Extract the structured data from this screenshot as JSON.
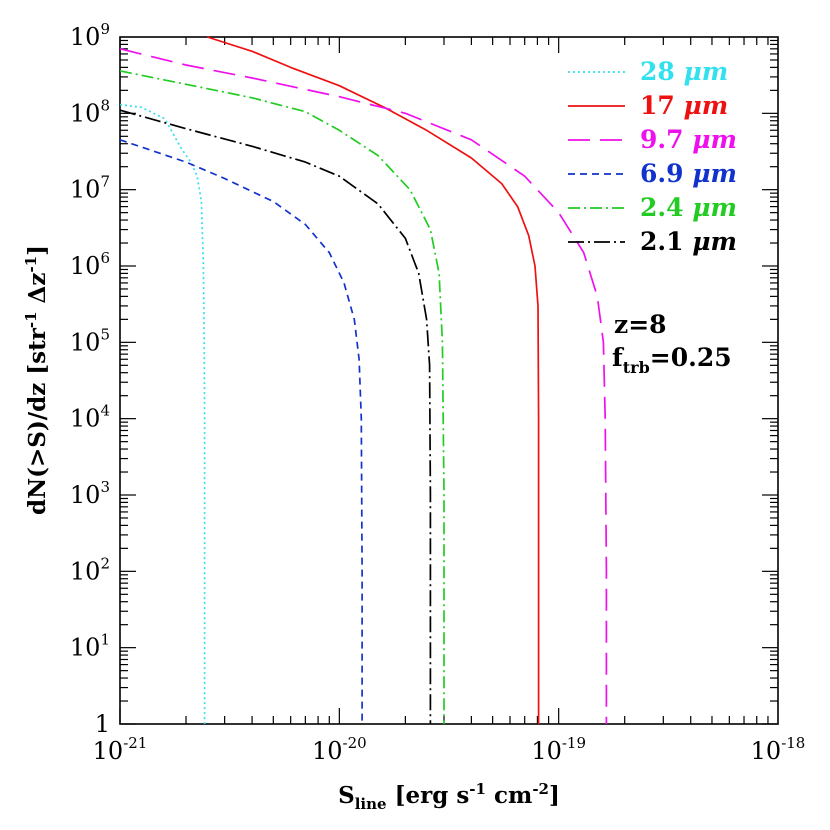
{
  "chart_data": {
    "type": "line",
    "xscale": "log",
    "yscale": "log",
    "xlim": [
      1e-21,
      1e-18
    ],
    "ylim": [
      1,
      1000000000.0
    ],
    "xlabel": {
      "main": "S",
      "sub": "line",
      "rest": " [erg s",
      "e1": "-1",
      "mid": " cm",
      "e2": "-2",
      "end": "]"
    },
    "ylabel": {
      "pre": "dN(>S)/dz [str",
      "e1": "-1",
      "mid": " Δz",
      "e2": "-1",
      "end": "]"
    },
    "xticks": [
      {
        "base": "10",
        "exp": "-21",
        "value": 1e-21
      },
      {
        "base": "10",
        "exp": "-20",
        "value": 1e-20
      },
      {
        "base": "10",
        "exp": "-19",
        "value": 1e-19
      },
      {
        "base": "10",
        "exp": "-18",
        "value": 1e-18
      }
    ],
    "yticks": [
      {
        "base": "1",
        "exp": "",
        "value": 1
      },
      {
        "base": "10",
        "exp": "1",
        "value": 10
      },
      {
        "base": "10",
        "exp": "2",
        "value": 100
      },
      {
        "base": "10",
        "exp": "3",
        "value": 1000
      },
      {
        "base": "10",
        "exp": "4",
        "value": 10000
      },
      {
        "base": "10",
        "exp": "5",
        "value": 100000
      },
      {
        "base": "10",
        "exp": "6",
        "value": 1000000
      },
      {
        "base": "10",
        "exp": "7",
        "value": 10000000
      },
      {
        "base": "10",
        "exp": "8",
        "value": 100000000
      },
      {
        "base": "10",
        "exp": "9",
        "value": 1000000000
      }
    ],
    "annotations": [
      {
        "text": "z=8"
      },
      {
        "text": "f",
        "sub": "trb",
        "rest": "=0.25"
      }
    ],
    "legend": {
      "placement": "top-right"
    },
    "series": [
      {
        "name": "28 μm",
        "label_num": "28",
        "label_unit": "μm",
        "color": "#33e0ee",
        "dash": "2,3",
        "x": [
          1e-21,
          1.25e-21,
          1.6e-21,
          1.9e-21,
          2.1e-21,
          2.25e-21,
          2.35e-21,
          2.4e-21,
          2.42e-21,
          2.43e-21,
          2.43e-21
        ],
        "y": [
          130000000.0,
          120000000.0,
          85000000.0,
          35000000.0,
          23000000.0,
          15000000.0,
          7000000.0,
          1000000.0,
          100000.0,
          10000.0,
          1
        ]
      },
      {
        "name": "17 μm",
        "label_num": "17",
        "label_unit": "μm",
        "color": "#ee1111",
        "dash": "",
        "x": [
          2.5e-21,
          4e-21,
          6e-21,
          1e-20,
          1.6e-20,
          2.5e-20,
          4e-20,
          5.5e-20,
          6.5e-20,
          7.3e-20,
          7.8e-20,
          8.05e-20,
          8.1e-20,
          8.1e-20
        ],
        "y": [
          1000000000.0,
          650000000.0,
          400000000.0,
          230000000.0,
          120000000.0,
          60000000.0,
          26000000.0,
          12000000.0,
          6000000.0,
          2500000.0,
          1000000.0,
          300000.0,
          10000.0,
          1
        ]
      },
      {
        "name": "9.7 μm",
        "label_num": "9.7",
        "label_unit": "μm",
        "color": "#ee11ee",
        "dash": "22,10",
        "x": [
          1e-21,
          2e-21,
          4e-21,
          1e-20,
          2e-20,
          4e-20,
          7e-20,
          1e-19,
          1.3e-19,
          1.5e-19,
          1.6e-19,
          1.63e-19,
          1.65e-19,
          1.65e-19
        ],
        "y": [
          700000000.0,
          430000000.0,
          290000000.0,
          165000000.0,
          100000000.0,
          45000000.0,
          15000000.0,
          5000000.0,
          1500000.0,
          400000.0,
          100000.0,
          10000.0,
          100.0,
          1
        ]
      },
      {
        "name": "6.9 μm",
        "label_num": "6.9",
        "label_unit": "μm",
        "color": "#1133cc",
        "dash": "7,5",
        "x": [
          1e-21,
          2e-21,
          3e-21,
          5e-21,
          7e-21,
          9e-21,
          1.05e-20,
          1.17e-20,
          1.23e-20,
          1.26e-20,
          1.27e-20,
          1.27e-20
        ],
        "y": [
          45000000.0,
          23000000.0,
          14000000.0,
          7000000.0,
          3500000.0,
          1500000.0,
          600000.0,
          200000.0,
          60000.0,
          10000.0,
          100.0,
          1
        ]
      },
      {
        "name": "2.4 μm",
        "label_num": "2.4",
        "label_unit": "μm",
        "color": "#22cc22",
        "dash": "12,4,2,4",
        "x": [
          1e-21,
          2e-21,
          4e-21,
          7e-21,
          1e-20,
          1.5e-20,
          2.1e-20,
          2.6e-20,
          2.85e-20,
          2.95e-20,
          3e-20,
          3e-20
        ],
        "y": [
          360000000.0,
          240000000.0,
          160000000.0,
          105000000.0,
          60000000.0,
          28000000.0,
          10000000.0,
          3000000.0,
          800000.0,
          100000.0,
          1000.0,
          1
        ]
      },
      {
        "name": "2.1 μm",
        "label_num": "2.1",
        "label_unit": "μm",
        "color": "#000000",
        "dash": "16,4,2,4",
        "x": [
          1e-21,
          2e-21,
          4e-21,
          7e-21,
          1e-20,
          1.5e-20,
          2e-20,
          2.3e-20,
          2.5e-20,
          2.58e-20,
          2.6e-20,
          2.6e-20
        ],
        "y": [
          110000000.0,
          63000000.0,
          37000000.0,
          23000000.0,
          15000000.0,
          6500000.0,
          2300000.0,
          800000.0,
          200000.0,
          50000.0,
          1000.0,
          1
        ]
      }
    ]
  }
}
